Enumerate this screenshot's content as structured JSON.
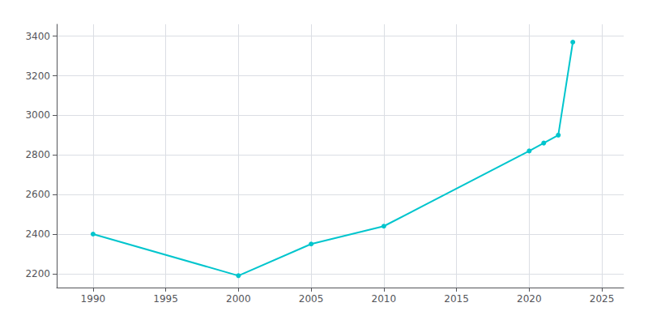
{
  "chart_data": {
    "type": "line",
    "x": [
      1990,
      2000,
      2005,
      2010,
      2020,
      2021,
      2022,
      2023
    ],
    "values": [
      2400,
      2190,
      2350,
      2440,
      2820,
      2860,
      2900,
      3370
    ],
    "color": "#00c5cd",
    "marker": "circle",
    "xlim": [
      1987.5,
      2026.5
    ],
    "ylim": [
      2130,
      3460
    ],
    "xticks": [
      1990,
      1995,
      2000,
      2005,
      2010,
      2015,
      2020,
      2025
    ],
    "yticks": [
      2200,
      2400,
      2600,
      2800,
      3000,
      3200,
      3400
    ],
    "grid": true
  }
}
